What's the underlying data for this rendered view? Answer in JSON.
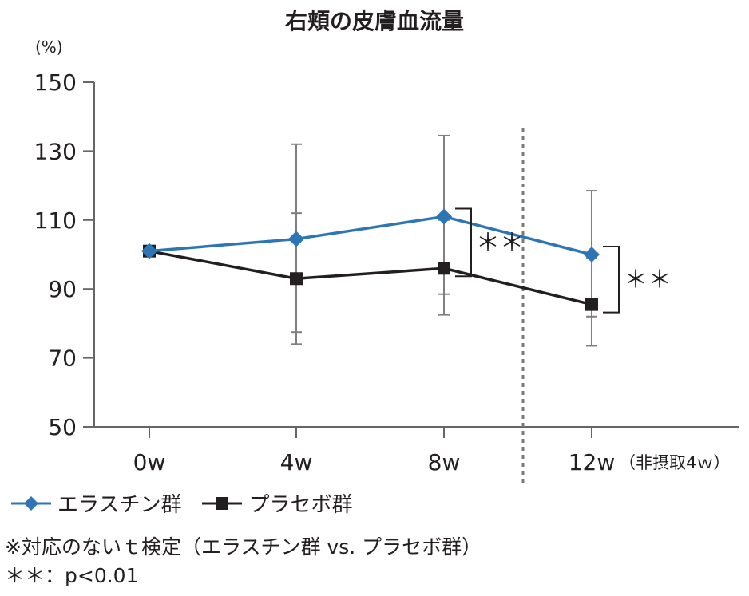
{
  "chart_data": {
    "type": "line",
    "title": "右頬の皮膚血流量",
    "unit_label": "(%)",
    "categories": [
      "0w",
      "4w",
      "8w",
      "12w"
    ],
    "x_note": "（非摂取4ｗ）",
    "ylim": [
      50,
      150
    ],
    "yticks": [
      "150",
      "130",
      "110",
      "90",
      "70",
      "50"
    ],
    "grid": false,
    "divider_after": "8w",
    "series": [
      {
        "name": "エラスチン群",
        "color": "#2e75b6",
        "marker": "diamond",
        "values": [
          101,
          104.5,
          111,
          100
        ],
        "err_upper": [
          101,
          132,
          134.5,
          118.5
        ],
        "err_lower": [
          101,
          77.5,
          88.5,
          82
        ]
      },
      {
        "name": "プラセボ群",
        "color": "#231f20",
        "marker": "square",
        "values": [
          101,
          93,
          96,
          85.5
        ],
        "err_upper": [
          101,
          112,
          110,
          99
        ],
        "err_lower": [
          101,
          74,
          82.5,
          73.5
        ]
      }
    ],
    "significance": [
      {
        "category": "8w",
        "label": "＊＊"
      },
      {
        "category": "12w",
        "label": "＊＊"
      }
    ]
  },
  "notes": {
    "test": "※対応のないｔ検定（エラスチン群 vs. プラセボ群）",
    "pvalue": "＊＊：p<0.01"
  }
}
